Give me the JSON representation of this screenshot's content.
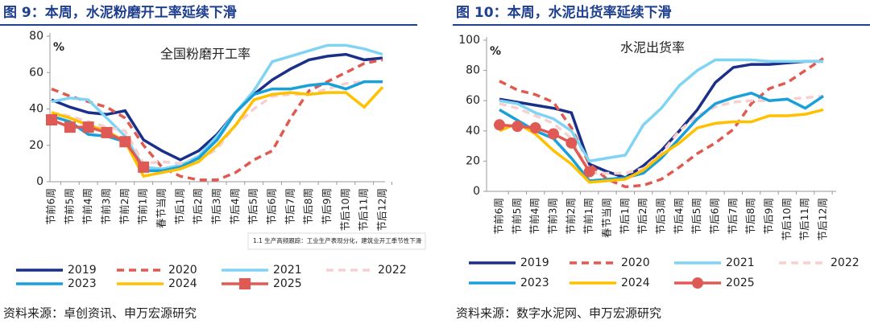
{
  "chart_data": [
    {
      "type": "line",
      "title": "图 9：本周，水泥粉磨开工率延续下滑",
      "y_unit": "%",
      "annotation": "全国粉磨开工率",
      "source": "资料来源：卓创资讯、申万宏源研究",
      "categories": [
        "节前6周",
        "节前5周",
        "节前4周",
        "节前3周",
        "节前2周",
        "节前1周",
        "春节当周",
        "节后1周",
        "节后2周",
        "节后3周",
        "节后4周",
        "节后5周",
        "节后6周",
        "节后7周",
        "节后8周",
        "节后9周",
        "节后10周",
        "节后11周",
        "节后12周"
      ],
      "ylim": [
        0,
        80
      ],
      "yticks": [
        0,
        20,
        40,
        60,
        80
      ],
      "series": [
        {
          "name": "2019",
          "color": "#1a2f8a",
          "values": [
            45,
            41,
            38,
            37,
            39,
            23,
            17,
            12,
            17,
            26,
            38,
            48,
            56,
            62,
            67,
            69,
            70,
            67,
            68
          ]
        },
        {
          "name": "2020",
          "color": "#e05a50",
          "dash": true,
          "values": [
            51,
            47,
            44,
            41,
            35,
            20,
            8,
            3,
            1,
            1,
            5,
            12,
            17,
            35,
            50,
            55,
            60,
            65,
            67
          ]
        },
        {
          "name": "2021",
          "color": "#7fd4f4",
          "values": [
            44,
            46,
            45,
            35,
            25,
            8,
            7,
            9,
            14,
            25,
            38,
            50,
            66,
            69,
            72,
            75,
            75,
            73,
            70
          ]
        },
        {
          "name": "2022",
          "color": "#f6d0d0",
          "dash": true,
          "values": [
            38,
            36,
            33,
            30,
            28,
            10,
            11,
            10,
            12,
            18,
            31,
            40,
            47,
            48,
            48,
            51,
            54,
            55,
            55
          ]
        },
        {
          "name": "2023",
          "color": "#1aa0d8",
          "values": [
            36,
            33,
            26,
            25,
            22,
            6,
            6,
            8,
            13,
            23,
            38,
            48,
            51,
            51,
            53,
            54,
            51,
            55,
            55
          ]
        },
        {
          "name": "2024",
          "color": "#ffc000",
          "values": [
            38,
            35,
            31,
            28,
            22,
            3,
            5,
            7,
            11,
            20,
            31,
            45,
            48,
            49,
            48,
            49,
            49,
            41,
            52
          ]
        },
        {
          "name": "2025",
          "color": "#e05a55",
          "marker": "square",
          "values": [
            34,
            30,
            30,
            27,
            22,
            8,
            null,
            null,
            null,
            null,
            null,
            null,
            null,
            null,
            null,
            null,
            null,
            null,
            null
          ]
        }
      ]
    },
    {
      "type": "line",
      "title": "图 10：本周，水泥出货率延续下滑",
      "y_unit": "%",
      "annotation": "水泥出货率",
      "source": "资料来源：数字水泥网、申万宏源研究",
      "categories": [
        "节前6周",
        "节前5周",
        "节前4周",
        "节前3周",
        "节前2周",
        "节前1周",
        "春节当周",
        "节后1周",
        "节后2周",
        "节后3周",
        "节后4周",
        "节后5周",
        "节后6周",
        "节后7周",
        "节后8周",
        "节后9周",
        "节后10周",
        "节后11周",
        "节后12周"
      ],
      "ylim": [
        0,
        100
      ],
      "yticks": [
        0,
        20,
        40,
        60,
        80,
        100
      ],
      "series": [
        {
          "name": "2019",
          "color": "#1a2f8a",
          "values": [
            61,
            59,
            57,
            55,
            52,
            18,
            13,
            9,
            17,
            27,
            40,
            54,
            72,
            82,
            84,
            84,
            85,
            86,
            86
          ]
        },
        {
          "name": "2020",
          "color": "#e05a50",
          "dash": true,
          "values": [
            73,
            67,
            64,
            59,
            42,
            18,
            8,
            3,
            4,
            8,
            16,
            25,
            32,
            41,
            58,
            68,
            72,
            80,
            88
          ]
        },
        {
          "name": "2021",
          "color": "#7fd4f4",
          "values": [
            60,
            58,
            52,
            48,
            40,
            20,
            22,
            24,
            44,
            55,
            70,
            80,
            87,
            87,
            87,
            86,
            86,
            86,
            86
          ]
        },
        {
          "name": "2022",
          "color": "#f6d0d0",
          "dash": true,
          "values": [
            58,
            55,
            50,
            45,
            35,
            12,
            12,
            12,
            15,
            25,
            40,
            50,
            56,
            59,
            60,
            60,
            61,
            62,
            63
          ]
        },
        {
          "name": "2023",
          "color": "#1aa0d8",
          "values": [
            54,
            47,
            40,
            35,
            22,
            7,
            8,
            9,
            12,
            22,
            35,
            48,
            58,
            62,
            65,
            60,
            61,
            55,
            63
          ]
        },
        {
          "name": "2024",
          "color": "#ffc000",
          "values": [
            40,
            45,
            38,
            27,
            18,
            6,
            7,
            8,
            14,
            24,
            32,
            42,
            45,
            46,
            46,
            50,
            50,
            51,
            54
          ]
        },
        {
          "name": "2025",
          "color": "#e05a55",
          "marker": "circle",
          "values": [
            44,
            43,
            42,
            38,
            32,
            13,
            null,
            null,
            null,
            null,
            null,
            null,
            null,
            null,
            null,
            null,
            null,
            null,
            null
          ]
        }
      ]
    }
  ],
  "overlay_note": "1.1 生产高频跟踪：工业生产表现分化，建筑业开工季节性下滑"
}
